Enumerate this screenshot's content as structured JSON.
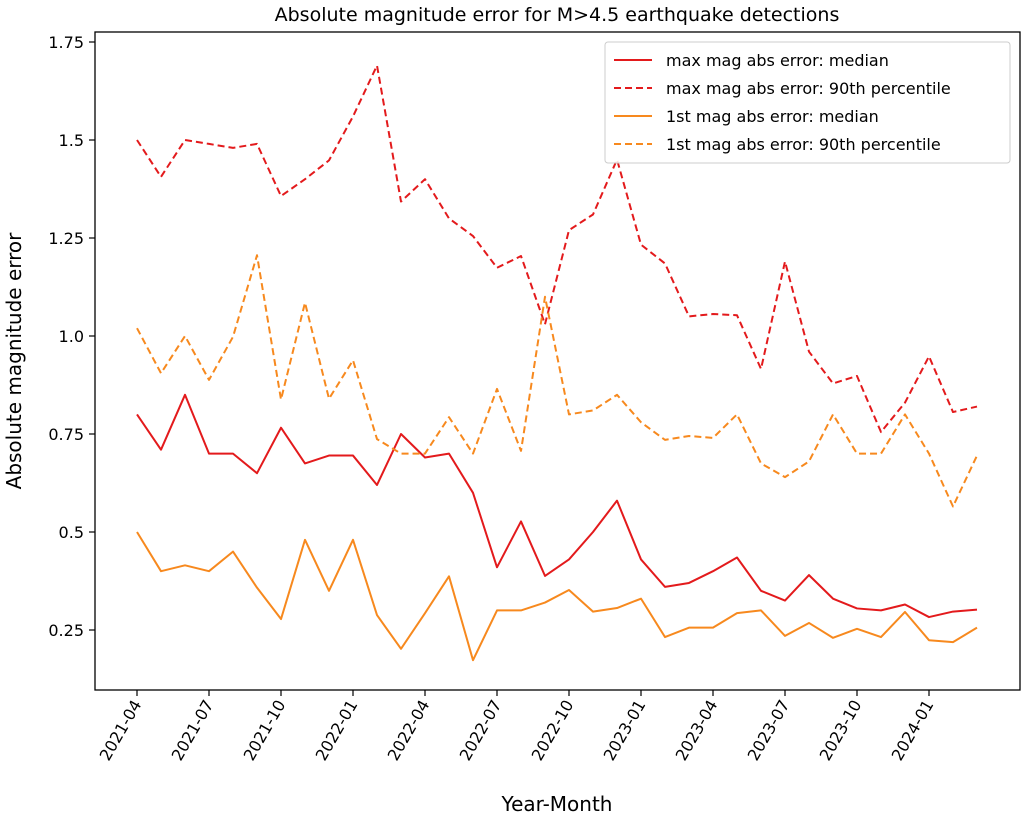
{
  "chart_data": {
    "type": "line",
    "title": "Absolute magnitude error for M>4.5 earthquake detections",
    "xlabel": "Year-Month",
    "ylabel": "Absolute magnitude error",
    "ylim": [
      0.12,
      1.77
    ],
    "yticks": [
      0.25,
      0.5,
      0.75,
      1.0,
      1.25,
      1.5,
      1.75
    ],
    "ytick_labels": [
      "0.25",
      "0.5",
      "0.75",
      "1.0",
      "1.25",
      "1.5",
      "1.75"
    ],
    "xtick_labels": [
      "2021-04",
      "2021-07",
      "2021-10",
      "2022-01",
      "2022-04",
      "2022-07",
      "2022-10",
      "2023-01",
      "2023-04",
      "2023-07",
      "2023-10",
      "2024-01"
    ],
    "grid": false,
    "legend_placement": "top-right",
    "x": [
      "2021-04",
      "2021-05",
      "2021-06",
      "2021-07",
      "2021-08",
      "2021-09",
      "2021-10",
      "2021-11",
      "2021-12",
      "2022-01",
      "2022-02",
      "2022-03",
      "2022-04",
      "2022-05",
      "2022-06",
      "2022-07",
      "2022-08",
      "2022-09",
      "2022-10",
      "2022-11",
      "2022-12",
      "2023-01",
      "2023-02",
      "2023-03",
      "2023-04",
      "2023-05",
      "2023-06",
      "2023-07",
      "2023-08",
      "2023-09",
      "2023-10",
      "2023-11",
      "2023-12",
      "2024-01",
      "2024-02",
      "2024-03"
    ],
    "series": [
      {
        "name": "max mag abs error: median",
        "color": "#e31a1c",
        "dashed": false,
        "values": [
          0.8,
          0.71,
          0.85,
          0.7,
          0.7,
          0.65,
          0.766,
          0.675,
          0.695,
          0.695,
          0.62,
          0.75,
          0.69,
          0.7,
          0.6,
          0.41,
          0.527,
          0.388,
          0.43,
          0.5,
          0.58,
          0.43,
          0.36,
          0.37,
          0.4,
          0.435,
          0.35,
          0.325,
          0.39,
          0.33,
          0.305,
          0.3,
          0.315,
          0.283,
          0.297,
          0.302
        ]
      },
      {
        "name": "max mag abs error: 90th percentile",
        "color": "#e31a1c",
        "dashed": true,
        "values": [
          1.5,
          1.406,
          1.5,
          1.49,
          1.48,
          1.49,
          1.357,
          1.4,
          1.448,
          1.56,
          1.69,
          1.343,
          1.4,
          1.3,
          1.255,
          1.174,
          1.204,
          1.03,
          1.27,
          1.31,
          1.45,
          1.233,
          1.185,
          1.05,
          1.056,
          1.053,
          0.916,
          1.19,
          0.96,
          0.879,
          0.898,
          0.755,
          0.83,
          0.948,
          0.806,
          0.82
        ]
      },
      {
        "name": "1st mag abs error: median",
        "color": "#f7891e",
        "dashed": false,
        "values": [
          0.5,
          0.4,
          0.415,
          0.4,
          0.45,
          0.358,
          0.278,
          0.48,
          0.35,
          0.48,
          0.288,
          0.202,
          0.293,
          0.387,
          0.173,
          0.3,
          0.3,
          0.32,
          0.352,
          0.297,
          0.306,
          0.33,
          0.232,
          0.256,
          0.256,
          0.293,
          0.3,
          0.235,
          0.268,
          0.23,
          0.253,
          0.232,
          0.296,
          0.224,
          0.219,
          0.256
        ]
      },
      {
        "name": "1st mag abs error: 90th percentile",
        "color": "#f7891e",
        "dashed": true,
        "values": [
          1.02,
          0.905,
          1.0,
          0.888,
          0.998,
          1.206,
          0.838,
          1.085,
          0.84,
          0.938,
          0.737,
          0.7,
          0.7,
          0.793,
          0.7,
          0.865,
          0.707,
          1.1,
          0.8,
          0.81,
          0.85,
          0.78,
          0.735,
          0.745,
          0.74,
          0.8,
          0.675,
          0.64,
          0.68,
          0.8,
          0.7,
          0.7,
          0.8,
          0.7,
          0.565,
          0.695
        ]
      }
    ]
  }
}
